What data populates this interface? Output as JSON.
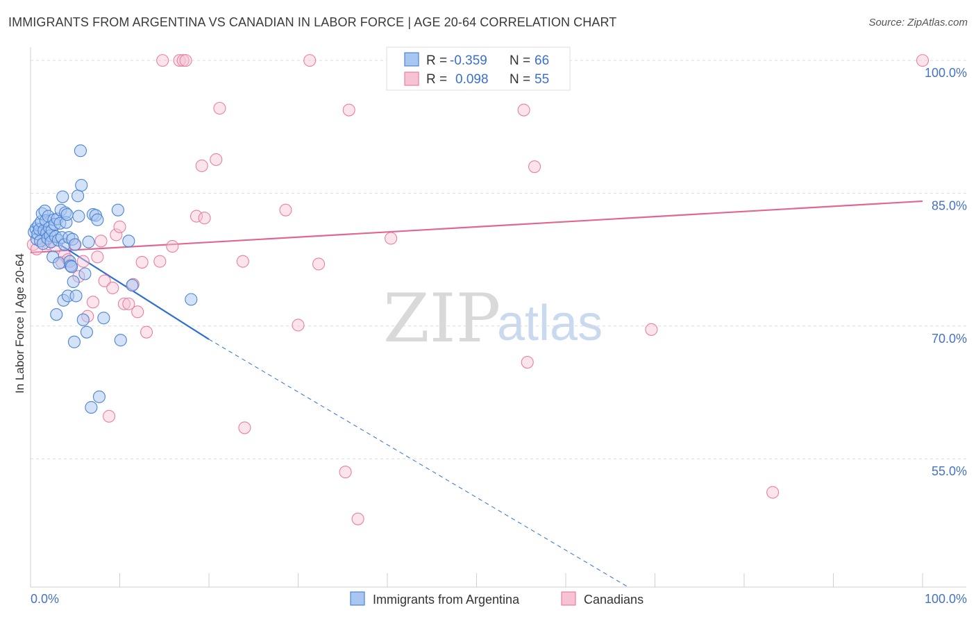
{
  "header": {
    "title": "IMMIGRANTS FROM ARGENTINA VS CANADIAN IN LABOR FORCE | AGE 20-64 CORRELATION CHART",
    "source": "Source: ZipAtlas.com"
  },
  "watermark": {
    "zip": "ZIP",
    "atlas": "atlas"
  },
  "legend_box": {
    "rows": [
      {
        "r_label": "R =",
        "r_value": "-0.359",
        "n_label": "N =",
        "n_value": "66"
      },
      {
        "r_label": "R =",
        "r_value": "0.098",
        "n_label": "N =",
        "n_value": "55"
      }
    ]
  },
  "bottom_legend": {
    "items": [
      {
        "label": "Immigrants from Argentina"
      },
      {
        "label": "Canadians"
      }
    ]
  },
  "chart_data": {
    "type": "scatter",
    "title": "IMMIGRANTS FROM ARGENTINA VS CANADIAN IN LABOR FORCE | AGE 20-64 CORRELATION CHART",
    "xlabel": "",
    "ylabel": "In Labor Force | Age 20-64",
    "xlim": [
      0,
      100
    ],
    "ylim": [
      40.5,
      101.5
    ],
    "x_tick_labels": [
      "0.0%",
      "100.0%"
    ],
    "y_ticks": [
      55,
      70,
      85,
      100
    ],
    "y_tick_labels": [
      "55.0%",
      "70.0%",
      "85.0%",
      "100.0%"
    ],
    "grid": true,
    "legend_placement": "top-center",
    "colors": {
      "argentina_fill": "#a9c6f0",
      "argentina_stroke": "#4a84d4",
      "argentina_line": "#2f6fd0",
      "canadians_fill": "#f7c3d4",
      "canadians_stroke": "#e87fa2",
      "canadians_line": "#e06694",
      "tick_label": "#4472c4"
    },
    "series": [
      {
        "name": "Immigrants from Argentina",
        "r": -0.359,
        "n": 66,
        "trend": {
          "x": [
            0,
            20
          ],
          "y": [
            81.3,
            68.5
          ],
          "dashed_to": [
            67,
            40.5
          ]
        },
        "points": [
          [
            0.4,
            80.6
          ],
          [
            0.6,
            81.0
          ],
          [
            0.7,
            79.8
          ],
          [
            0.8,
            80.4
          ],
          [
            0.9,
            81.4
          ],
          [
            1.0,
            80.9
          ],
          [
            1.1,
            79.6
          ],
          [
            1.2,
            81.8
          ],
          [
            1.3,
            82.7
          ],
          [
            1.4,
            79.3
          ],
          [
            1.5,
            80.8
          ],
          [
            1.6,
            83.0
          ],
          [
            1.7,
            81.9
          ],
          [
            1.8,
            80.5
          ],
          [
            1.9,
            79.9
          ],
          [
            2.0,
            82.4
          ],
          [
            2.1,
            81.1
          ],
          [
            2.2,
            80.2
          ],
          [
            2.3,
            79.5
          ],
          [
            2.4,
            80.8
          ],
          [
            2.5,
            77.8
          ],
          [
            2.6,
            82.0
          ],
          [
            2.7,
            81.5
          ],
          [
            2.8,
            80.1
          ],
          [
            2.9,
            71.3
          ],
          [
            3.0,
            82.1
          ],
          [
            3.1,
            79.7
          ],
          [
            3.2,
            77.1
          ],
          [
            3.3,
            81.6
          ],
          [
            3.4,
            83.1
          ],
          [
            3.5,
            80.0
          ],
          [
            3.6,
            84.6
          ],
          [
            3.7,
            72.9
          ],
          [
            3.8,
            79.2
          ],
          [
            3.9,
            82.8
          ],
          [
            4.0,
            81.7
          ],
          [
            4.1,
            82.6
          ],
          [
            4.2,
            73.4
          ],
          [
            4.3,
            80.0
          ],
          [
            4.4,
            77.3
          ],
          [
            4.5,
            76.8
          ],
          [
            4.6,
            76.7
          ],
          [
            4.7,
            79.8
          ],
          [
            4.8,
            75.0
          ],
          [
            4.9,
            68.2
          ],
          [
            5.0,
            79.2
          ],
          [
            5.1,
            73.4
          ],
          [
            5.3,
            84.7
          ],
          [
            5.4,
            82.4
          ],
          [
            5.6,
            89.8
          ],
          [
            5.7,
            85.9
          ],
          [
            5.9,
            70.7
          ],
          [
            6.1,
            75.9
          ],
          [
            6.3,
            69.3
          ],
          [
            6.5,
            79.5
          ],
          [
            6.8,
            60.8
          ],
          [
            7.0,
            82.6
          ],
          [
            7.3,
            82.5
          ],
          [
            7.5,
            82.0
          ],
          [
            7.7,
            62.0
          ],
          [
            8.2,
            70.9
          ],
          [
            9.8,
            83.1
          ],
          [
            10.1,
            68.4
          ],
          [
            11.0,
            79.6
          ],
          [
            11.4,
            74.6
          ],
          [
            18.0,
            73.0
          ]
        ]
      },
      {
        "name": "Canadians",
        "r": 0.098,
        "n": 55,
        "trend": {
          "x": [
            0,
            100
          ],
          "y": [
            78.3,
            84.1
          ]
        },
        "points": [
          [
            0.3,
            79.2
          ],
          [
            0.7,
            78.7
          ],
          [
            1.5,
            79.7
          ],
          [
            2.0,
            79.3
          ],
          [
            2.8,
            79.0
          ],
          [
            3.5,
            77.2
          ],
          [
            3.8,
            78.0
          ],
          [
            4.2,
            77.5
          ],
          [
            4.6,
            76.7
          ],
          [
            4.9,
            79.2
          ],
          [
            5.4,
            75.6
          ],
          [
            5.9,
            77.3
          ],
          [
            6.4,
            71.1
          ],
          [
            7.0,
            72.7
          ],
          [
            7.5,
            77.8
          ],
          [
            7.9,
            79.6
          ],
          [
            8.3,
            75.1
          ],
          [
            8.8,
            59.8
          ],
          [
            9.2,
            74.3
          ],
          [
            9.6,
            80.3
          ],
          [
            10.0,
            81.2
          ],
          [
            10.5,
            72.5
          ],
          [
            11.0,
            72.5
          ],
          [
            11.5,
            74.7
          ],
          [
            12.0,
            71.6
          ],
          [
            12.5,
            77.2
          ],
          [
            13.0,
            69.3
          ],
          [
            14.5,
            77.3
          ],
          [
            14.8,
            100.0
          ],
          [
            15.9,
            79.0
          ],
          [
            16.7,
            100.0
          ],
          [
            17.1,
            100.0
          ],
          [
            17.4,
            100.0
          ],
          [
            18.6,
            82.4
          ],
          [
            19.2,
            88.1
          ],
          [
            19.5,
            82.2
          ],
          [
            20.8,
            88.8
          ],
          [
            21.2,
            94.6
          ],
          [
            23.8,
            77.3
          ],
          [
            24.0,
            58.5
          ],
          [
            28.6,
            83.1
          ],
          [
            30.0,
            70.1
          ],
          [
            31.3,
            100.0
          ],
          [
            32.3,
            77.0
          ],
          [
            35.3,
            53.5
          ],
          [
            35.7,
            94.4
          ],
          [
            36.7,
            48.2
          ],
          [
            40.4,
            79.9
          ],
          [
            41.0,
            100.0
          ],
          [
            55.3,
            94.4
          ],
          [
            55.7,
            65.9
          ],
          [
            56.5,
            88.0
          ],
          [
            69.6,
            69.6
          ],
          [
            83.2,
            51.2
          ],
          [
            100.0,
            100.0
          ]
        ]
      }
    ]
  }
}
